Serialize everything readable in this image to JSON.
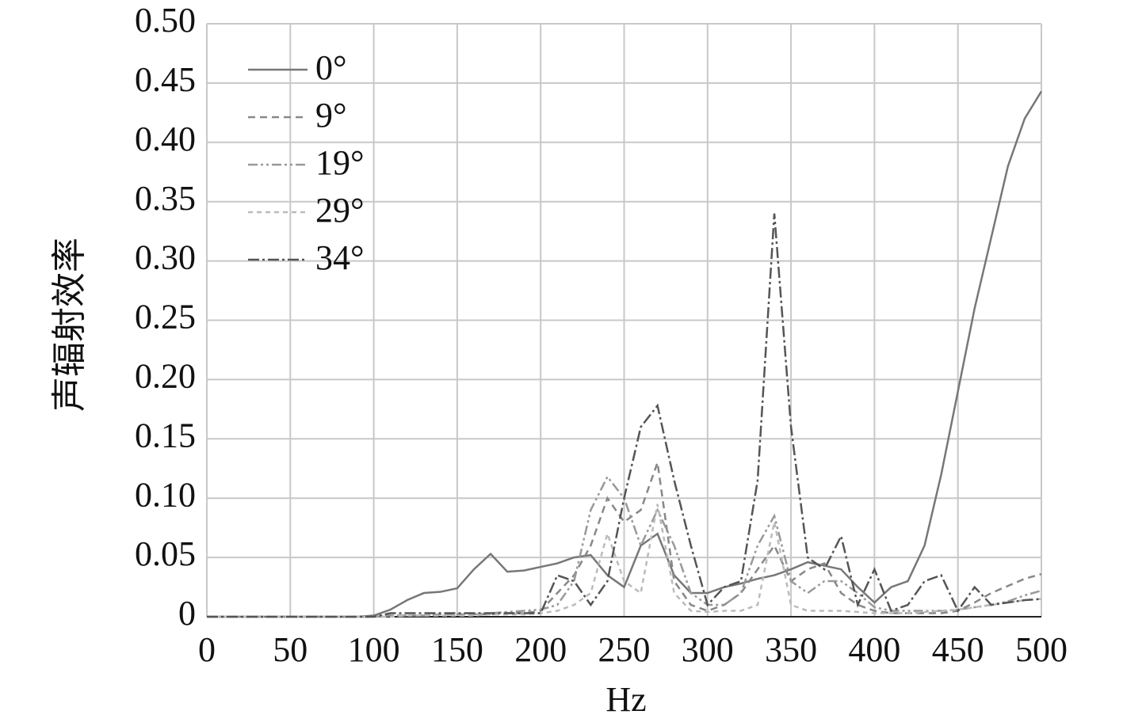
{
  "chart_data": {
    "type": "line",
    "y_label": "声辐射效率",
    "x_label": "Hz",
    "x": [
      0,
      10,
      20,
      30,
      40,
      50,
      60,
      70,
      80,
      90,
      100,
      110,
      120,
      130,
      140,
      150,
      160,
      170,
      180,
      190,
      200,
      210,
      220,
      230,
      240,
      250,
      260,
      270,
      280,
      290,
      300,
      310,
      320,
      330,
      340,
      350,
      360,
      370,
      380,
      390,
      400,
      410,
      420,
      430,
      440,
      450,
      460,
      470,
      480,
      490,
      500
    ],
    "series": [
      {
        "name": "0°",
        "color": "#777777",
        "dash": "none",
        "values": [
          0,
          0,
          0,
          0,
          0,
          0,
          0,
          0,
          0,
          0,
          0.001,
          0.006,
          0.014,
          0.02,
          0.021,
          0.024,
          0.04,
          0.053,
          0.038,
          0.039,
          0.042,
          0.045,
          0.05,
          0.052,
          0.035,
          0.025,
          0.06,
          0.07,
          0.035,
          0.02,
          0.02,
          0.025,
          0.028,
          0.032,
          0.035,
          0.04,
          0.046,
          0.043,
          0.04,
          0.025,
          0.012,
          0.025,
          0.03,
          0.06,
          0.12,
          0.19,
          0.26,
          0.32,
          0.38,
          0.42,
          0.443
        ]
      },
      {
        "name": "9°",
        "color": "#888888",
        "dash": "9 6",
        "values": [
          0,
          0,
          0,
          0,
          0,
          0,
          0,
          0,
          0,
          0,
          0,
          0.001,
          0.001,
          0.001,
          0.002,
          0.002,
          0.002,
          0.002,
          0.003,
          0.003,
          0.005,
          0.02,
          0.035,
          0.06,
          0.1,
          0.08,
          0.09,
          0.13,
          0.03,
          0.01,
          0.005,
          0.01,
          0.02,
          0.04,
          0.06,
          0.03,
          0.04,
          0.045,
          0.02,
          0.01,
          0.005,
          0.003,
          0.003,
          0.003,
          0.003,
          0.005,
          0.012,
          0.02,
          0.026,
          0.032,
          0.036
        ]
      },
      {
        "name": "19°",
        "color": "#999999",
        "dash": "12 4 3 4 3 4",
        "values": [
          0,
          0,
          0,
          0,
          0,
          0,
          0,
          0,
          0,
          0,
          0,
          0.001,
          0.001,
          0.001,
          0.002,
          0.002,
          0.002,
          0.003,
          0.004,
          0.005,
          0.006,
          0.01,
          0.03,
          0.09,
          0.118,
          0.1,
          0.06,
          0.09,
          0.06,
          0.02,
          0.01,
          0.01,
          0.02,
          0.06,
          0.085,
          0.03,
          0.02,
          0.03,
          0.03,
          0.02,
          0.008,
          0.005,
          0.005,
          0.005,
          0.005,
          0.006,
          0.008,
          0.01,
          0.013,
          0.018,
          0.022
        ]
      },
      {
        "name": "29°",
        "color": "#bbbbbb",
        "dash": "6 5",
        "values": [
          0,
          0,
          0,
          0,
          0,
          0,
          0,
          0,
          0,
          0,
          0,
          0,
          0.001,
          0.001,
          0.001,
          0.001,
          0.001,
          0.002,
          0.002,
          0.002,
          0.003,
          0.005,
          0.01,
          0.02,
          0.07,
          0.03,
          0.02,
          0.095,
          0.02,
          0.005,
          0.004,
          0.005,
          0.005,
          0.01,
          0.08,
          0.01,
          0.005,
          0.005,
          0.005,
          0.004,
          0.003,
          0.003,
          0.003,
          0.004,
          0.005,
          0.006,
          0.008,
          0.01,
          0.012,
          0.014,
          0.015
        ]
      },
      {
        "name": "34°",
        "color": "#555555",
        "dash": "14 4 3 4",
        "values": [
          0,
          0,
          0,
          0,
          0,
          0,
          0,
          0,
          0,
          0,
          0,
          0.003,
          0.003,
          0.003,
          0.003,
          0.003,
          0.003,
          0.003,
          0.003,
          0.003,
          0.003,
          0.035,
          0.03,
          0.01,
          0.03,
          0.1,
          0.16,
          0.178,
          0.115,
          0.06,
          0.01,
          0.025,
          0.03,
          0.115,
          0.34,
          0.16,
          0.05,
          0.04,
          0.068,
          0.01,
          0.04,
          0.005,
          0.01,
          0.03,
          0.035,
          0.005,
          0.025,
          0.01,
          0.012,
          0.014,
          0.015
        ]
      }
    ],
    "xlim": [
      0,
      500
    ],
    "xticks": [
      0,
      50,
      100,
      150,
      200,
      250,
      300,
      350,
      400,
      450,
      500
    ],
    "ylim": [
      0,
      0.5
    ],
    "yticks": [
      0,
      0.05,
      {
        "value": 0.1,
        "label": "0.10"
      },
      0.15,
      {
        "value": 0.2,
        "label": "0.20"
      },
      0.25,
      {
        "value": 0.3,
        "label": "0.30"
      },
      0.35,
      {
        "value": 0.4,
        "label": "0.40"
      },
      0.45,
      {
        "value": 0.5,
        "label": "0.50"
      }
    ],
    "grid": true,
    "legend": "upper left"
  }
}
